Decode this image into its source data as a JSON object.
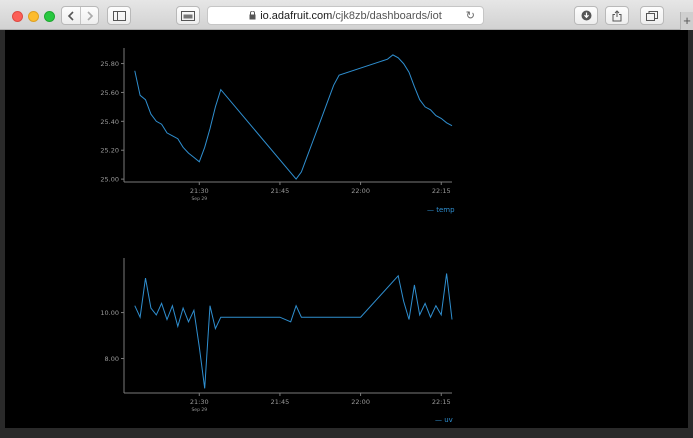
{
  "browser": {
    "url_domain": "io.adafruit.com",
    "url_path": "/cjk8zb/dashboards/iot"
  },
  "chart_data": [
    {
      "type": "line",
      "series": [
        {
          "name": "temp",
          "x": [
            "21:18",
            "21:19",
            "21:20",
            "21:21",
            "21:22",
            "21:23",
            "21:24",
            "21:25",
            "21:26",
            "21:27",
            "21:28",
            "21:29",
            "21:30",
            "21:31",
            "21:32",
            "21:33",
            "21:34",
            "21:48",
            "21:49",
            "21:50",
            "21:51",
            "21:52",
            "21:53",
            "21:54",
            "21:55",
            "21:56",
            "22:05",
            "22:06",
            "22:07",
            "22:08",
            "22:09",
            "22:10",
            "22:11",
            "22:12",
            "22:13",
            "22:14",
            "22:15",
            "22:16",
            "22:17"
          ],
          "values": [
            25.75,
            25.58,
            25.55,
            25.45,
            25.4,
            25.38,
            25.32,
            25.3,
            25.28,
            25.22,
            25.18,
            25.15,
            25.12,
            25.22,
            25.35,
            25.5,
            25.62,
            25.0,
            25.05,
            25.15,
            25.25,
            25.35,
            25.45,
            25.55,
            25.65,
            25.72,
            25.83,
            25.86,
            25.84,
            25.8,
            25.74,
            25.64,
            25.55,
            25.5,
            25.48,
            25.44,
            25.42,
            25.39,
            25.37
          ]
        }
      ],
      "yticks": [
        "25.00",
        "25.20",
        "25.40",
        "25.60",
        "25.80"
      ],
      "xticks": [
        "21:30",
        "21:45",
        "22:00",
        "22:15"
      ],
      "xsub": "Sep 29",
      "ylim": [
        24.98,
        25.88
      ],
      "legend": "temp",
      "color": "#2f8fd0"
    },
    {
      "type": "line",
      "series": [
        {
          "name": "uv",
          "x": [
            "21:18",
            "21:19",
            "21:20",
            "21:21",
            "21:22",
            "21:23",
            "21:24",
            "21:25",
            "21:26",
            "21:27",
            "21:28",
            "21:29",
            "21:30",
            "21:31",
            "21:32",
            "21:33",
            "21:34",
            "21:35",
            "21:40",
            "21:45",
            "21:47",
            "21:48",
            "21:49",
            "21:50",
            "21:55",
            "22:00",
            "22:07",
            "22:08",
            "22:09",
            "22:10",
            "22:11",
            "22:12",
            "22:13",
            "22:14",
            "22:15",
            "22:16",
            "22:17"
          ],
          "values": [
            10.3,
            9.8,
            11.5,
            10.2,
            9.9,
            10.4,
            9.7,
            10.3,
            9.4,
            10.2,
            9.6,
            10.1,
            8.5,
            6.7,
            10.3,
            9.3,
            9.8,
            9.8,
            9.8,
            9.8,
            9.6,
            10.3,
            9.8,
            9.8,
            9.8,
            9.8,
            11.6,
            10.5,
            9.7,
            11.2,
            9.9,
            10.4,
            9.8,
            10.3,
            9.9,
            11.7,
            9.7
          ]
        }
      ],
      "yticks": [
        "8.00",
        "10.00"
      ],
      "xticks": [
        "21:30",
        "21:45",
        "22:00",
        "22:15"
      ],
      "xsub": "Sep 29",
      "ylim": [
        6.5,
        12.2
      ],
      "legend": "uv",
      "color": "#2f8fd0"
    }
  ]
}
